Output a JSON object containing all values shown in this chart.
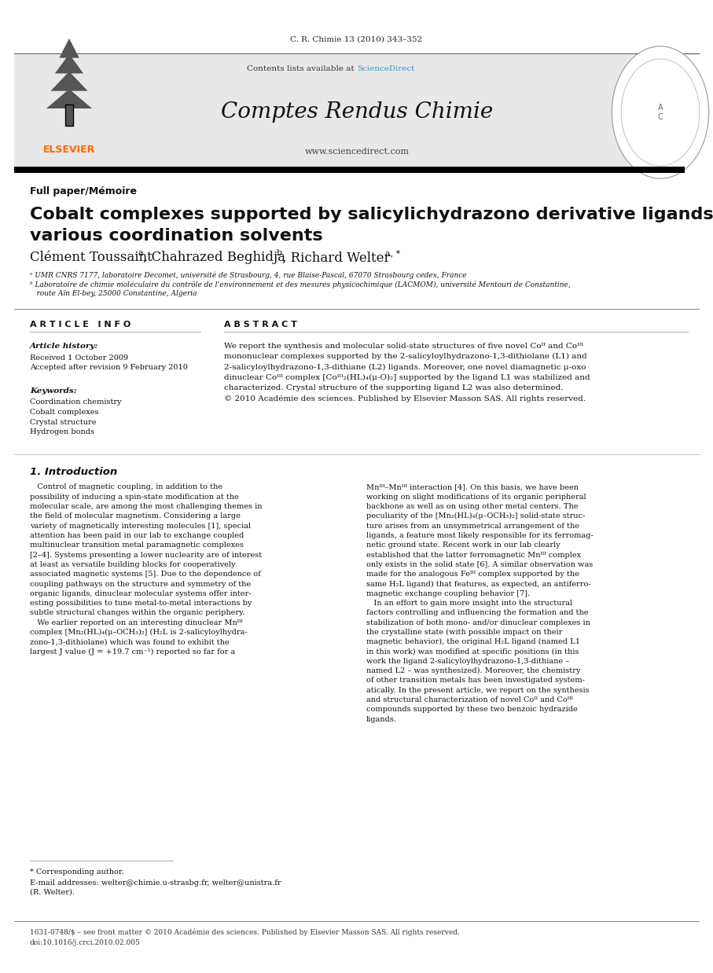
{
  "page_width": 9.07,
  "page_height": 12.38,
  "bg_color": "#ffffff",
  "journal_ref": "C. R. Chimie 13 (2010) 343–352",
  "header_bg": "#e8e8e8",
  "header_title": "Comptes Rendus Chimie",
  "header_url": "www.sciencedirect.com",
  "header_sd_text": "Contents lists available at ",
  "header_sd_link": "ScienceDirect",
  "elsevier_text": "ELSEVIER",
  "elsevier_color": "#FF6600",
  "thick_bar_color": "#000000",
  "section_label": "Full paper/Mémoire",
  "title_line1": "Cobalt complexes supported by salicylichydrazono derivative ligands and",
  "title_line2": "various coordination solvents",
  "affil_a": "ᵃ UMR CNRS 7177, laboratoire Decomet, université de Strasbourg, 4, rue Blaise-Pascal, 67070 Strasbourg cedex, France",
  "affil_b": "ᵇ Laboratoire de chimie moléculaire du contrôle de l’environnement et des mesures physicochimique (LACMOM), université Mentouri de Constantine,",
  "affil_b2": "   route Aïn El-bey, 25000 Constantine, Algeria",
  "article_info_header": "A R T I C L E   I N F O",
  "abstract_header": "A B S T R A C T",
  "article_history_label": "Article history:",
  "received": "Received 1 October 2009",
  "accepted": "Accepted after revision 9 February 2010",
  "keywords_label": "Keywords:",
  "kw1": "Coordination chemistry",
  "kw2": "Cobalt complexes",
  "kw3": "Crystal structure",
  "kw4": "Hydrogen bonds",
  "abstract_text": "We report the synthesis and molecular solid-state structures of five novel Coᴵᴵ and Coᴵᴵᴵ\nmononuclear complexes supported by the 2-salicyloylhydrazono-1,3-dithiolane (L1) and\n2-salicyloylhydrazono-1,3-dithiane (L2) ligands. Moreover, one novel diamagnetic μ-oxo\ndinuclear Coᴵᴵᴵ complex [Coᴵᴵᴵ₂(HL)₄(μ-O)₂] supported by the ligand L1 was stabilized and\ncharacterized. Crystal structure of the supporting ligand L2 was also determined.\n© 2010 Académie des sciences. Published by Elsevier Masson SAS. All rights reserved.",
  "intro_heading": "1. Introduction",
  "intro_col1_lines": [
    "   Control of magnetic coupling, in addition to the",
    "possibility of inducing a spin-state modification at the",
    "molecular scale, are among the most challenging themes in",
    "the field of molecular magnetism. Considering a large",
    "variety of magnetically interesting molecules [1], special",
    "attention has been paid in our lab to exchange coupled",
    "multinuclear transition metal paramagnetic complexes",
    "[2–4]. Systems presenting a lower nuclearity are of interest",
    "at least as versatile building blocks for cooperatively",
    "associated magnetic systems [5]. Due to the dependence of",
    "coupling pathways on the structure and symmetry of the",
    "organic ligands, dinuclear molecular systems offer inter-",
    "esting possibilities to tune metal-to-metal interactions by",
    "subtle structural changes within the organic periphery.",
    "   We earlier reported on an interesting dinuclear Mnᴵᴵᴵ",
    "complex [Mn₂(HL)₄(μ–OCH₃)₂] (H₂L is 2-salicyloylhydra-",
    "zono-1,3-dithiolane) which was found to exhibit the",
    "largest J value (J = +19.7 cm⁻¹) reported so far for a"
  ],
  "intro_col2_lines": [
    "Mnᴵᴵᴵ–Mnᴵᴵᴵ interaction [4]. On this basis, we have been",
    "working on slight modifications of its organic peripheral",
    "backbone as well as on using other metal centers. The",
    "peculiarity of the [Mn₂(HL)₄(μ–OCH₃)₂] solid-state struc-",
    "ture arises from an unsymmetrical arrangement of the",
    "ligands, a feature most likely responsible for its ferromag-",
    "netic ground state. Recent work in our lab clearly",
    "established that the latter ferromagnetic Mnᴵᴵᴵ complex",
    "only exists in the solid state [6]. A similar observation was",
    "made for the analogous Feᴵᴵᴵ complex supported by the",
    "same H₂L ligand) that features, as expected, an antiferro-",
    "magnetic exchange coupling behavior [7].",
    "   In an effort to gain more insight into the structural",
    "factors controlling and influencing the formation and the",
    "stabilization of both mono- and/or dinuclear complexes in",
    "the crystalline state (with possible impact on their",
    "magnetic behavior), the original H₂L ligand (named L1",
    "in this work) was modified at specific positions (in this",
    "work the ligand 2-salicyloylhydrazono-1,3-dithiane –",
    "named L2 – was synthesized). Moreover, the chemistry",
    "of other transition metals has been investigated system-",
    "atically. In the present article, we report on the synthesis",
    "and structural characterization of novel Coᴵᴵ and Coᴵᴵᴵ",
    "compounds supported by these two benzoic hydrazide",
    "ligands."
  ],
  "footnote_corr": "* Corresponding author.",
  "footnote_email": "E-mail addresses: welter@chimie.u-strasbg.fr, welter@unistra.fr",
  "footnote_email2": "(R. Welter).",
  "footer_line1": "1631-0748/$ – see front matter © 2010 Académie des sciences. Published by Elsevier Masson SAS. All rights reserved.",
  "footer_line2": "doi:10.1016/j.crci.2010.02.005"
}
